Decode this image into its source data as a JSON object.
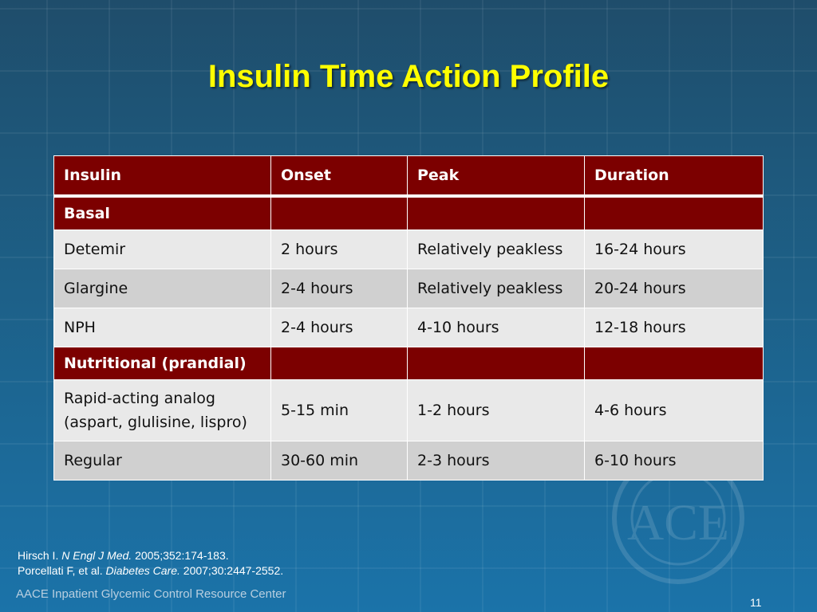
{
  "title": "Insulin Time Action Profile",
  "table": {
    "headers": [
      "Insulin",
      "Onset",
      "Peak",
      "Duration"
    ],
    "sections": [
      {
        "label": "Basal",
        "rows": [
          [
            "Detemir",
            "2 hours",
            "Relatively peakless",
            "16-24 hours"
          ],
          [
            "Glargine",
            "2-4 hours",
            "Relatively peakless",
            "20-24 hours"
          ],
          [
            "NPH",
            "2-4 hours",
            "4-10 hours",
            "12-18 hours"
          ]
        ]
      },
      {
        "label": "Nutritional (prandial)",
        "rows": [
          [
            "Rapid-acting analog",
            "5-15 min",
            "1-2 hours",
            "4-6 hours"
          ],
          [
            "Regular",
            "30-60 min",
            "2-3 hours",
            "6-10 hours"
          ]
        ],
        "rapid_line2": "(aspart, glulisine, lispro)"
      }
    ]
  },
  "references": {
    "ref1_pre": "Hirsch I.",
    "ref1_journal": "N Engl J Med.",
    "ref1_post": "2005;352:174-183.",
    "ref2_pre": "Porcellati F, et al.",
    "ref2_journal": "Diabetes Care.",
    "ref2_post": "2007;30:2447-2552."
  },
  "footer": "AACE Inpatient Glycemic Control Resource Center",
  "page_number": "11",
  "watermark": {
    "icon": "aace-seal",
    "text": "ACE"
  },
  "colors": {
    "header_bg": "#7c0000",
    "title": "#ffff00"
  }
}
